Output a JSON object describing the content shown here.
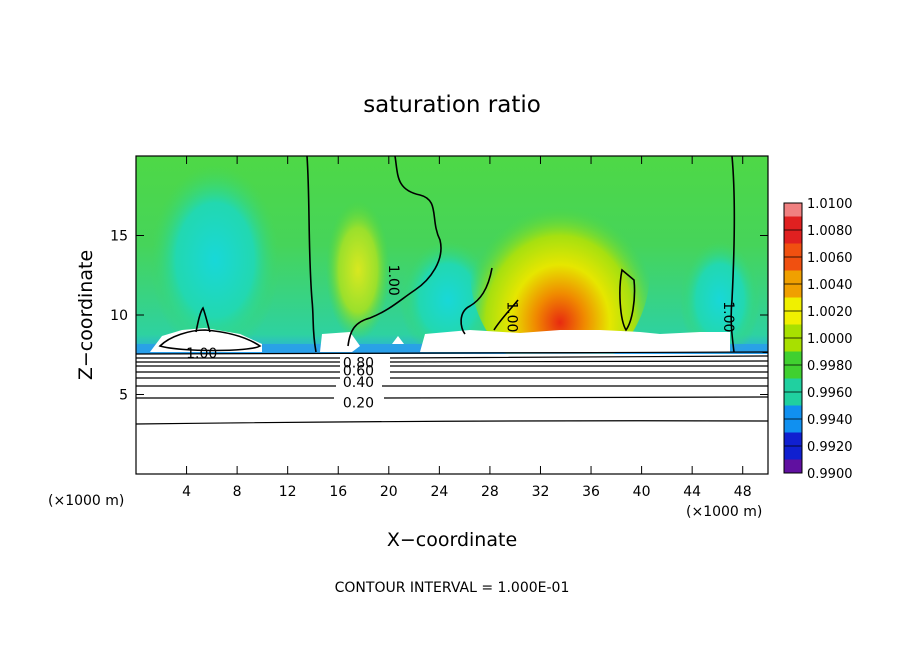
{
  "chart_data": {
    "type": "heatmap",
    "title": "saturation ratio",
    "xlabel": "X−coordinate",
    "ylabel": "Z−coordinate",
    "x_unit_left": "(×1000 m)",
    "x_unit_right": "(×1000 m)",
    "xlim": [
      0,
      50
    ],
    "ylim": [
      0,
      20
    ],
    "x_ticks": [
      4,
      8,
      12,
      16,
      20,
      24,
      28,
      32,
      36,
      40,
      44,
      48
    ],
    "y_ticks": [
      5,
      10,
      15
    ],
    "colorbar": {
      "values": [
        "1.0100",
        "1.0080",
        "1.0060",
        "1.0040",
        "1.0020",
        "1.0000",
        "0.9980",
        "0.9960",
        "0.9940",
        "0.9920",
        "0.9900"
      ],
      "colors": [
        "#f08080",
        "#e02020",
        "#f05010",
        "#f0a000",
        "#f0f000",
        "#a8e000",
        "#40d030",
        "#20d0a0",
        "#1090f0",
        "#1020d0",
        "#6010a0"
      ]
    },
    "contour_labels": [
      {
        "text": "1.00",
        "x": 5.2,
        "z": 7.6,
        "rotate": 0
      },
      {
        "text": "1.00",
        "x": 20.0,
        "z": 12.5,
        "rotate": 90
      },
      {
        "text": "1.00",
        "x": 29.4,
        "z": 10.2,
        "rotate": 90
      },
      {
        "text": "1.00",
        "x": 46.5,
        "z": 10.2,
        "rotate": 90
      },
      {
        "text": "0.80",
        "x": 17.6,
        "z": 7.0,
        "rotate": 0
      },
      {
        "text": "0.60",
        "x": 17.6,
        "z": 6.5,
        "rotate": 0
      },
      {
        "text": "0.40",
        "x": 17.6,
        "z": 5.8,
        "rotate": 0
      },
      {
        "text": "0.20",
        "x": 17.6,
        "z": 4.5,
        "rotate": 0
      }
    ],
    "grid": false
  },
  "footnote": "CONTOUR INTERVAL = 1.000E-01"
}
